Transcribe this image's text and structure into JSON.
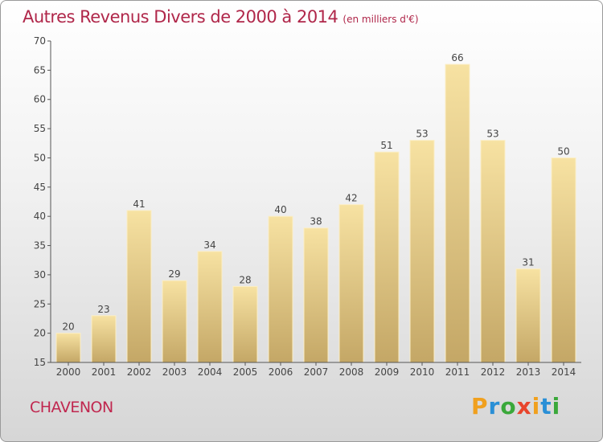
{
  "title_main": "Autres Revenus Divers de 2000 à 2014",
  "title_unit": "(en milliers d'€)",
  "commune": "CHAVENON",
  "logo": {
    "text": "Proxiti",
    "letters": [
      "P",
      "r",
      "o",
      "x",
      "i",
      "t",
      "i"
    ],
    "colors": [
      "#f0a01e",
      "#2a8fd6",
      "#3aa83a",
      "#e8452c",
      "#f0a01e",
      "#2a8fd6",
      "#3aa83a"
    ]
  },
  "colors": {
    "bar_light": "#f5dfa0",
    "bar_dark": "#c9ad6a",
    "bar_top": "#fbedc2",
    "axis": "#555555",
    "title": "#b0274a"
  },
  "chart_data": {
    "type": "bar",
    "title": "Autres Revenus Divers de 2000 à 2014",
    "subtitle": "(en milliers d'€)",
    "categories": [
      "2000",
      "2001",
      "2002",
      "2003",
      "2004",
      "2005",
      "2006",
      "2007",
      "2008",
      "2009",
      "2010",
      "2011",
      "2012",
      "2013",
      "2014"
    ],
    "values": [
      20,
      23,
      41,
      29,
      34,
      28,
      40,
      38,
      42,
      51,
      53,
      66,
      53,
      31,
      50
    ],
    "ylim": [
      15,
      70
    ],
    "yticks": [
      15,
      20,
      25,
      30,
      35,
      40,
      45,
      50,
      55,
      60,
      65,
      70
    ],
    "grid": false,
    "data_labels": true
  }
}
